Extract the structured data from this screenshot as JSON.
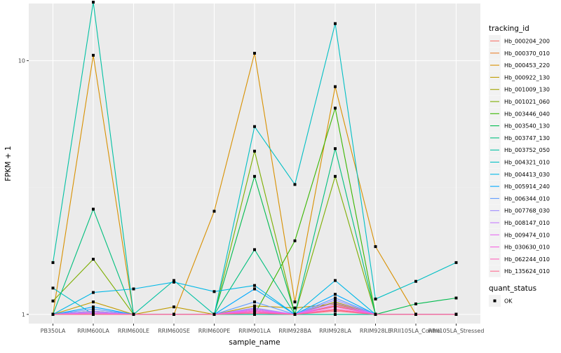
{
  "chart_data": {
    "type": "line",
    "xlabel": "sample_name",
    "ylabel": "FPKM + 1",
    "y_scale": "log10",
    "ylim": [
      0.92,
      16.8
    ],
    "grid": true,
    "legend_position": "right",
    "y_ticks": [
      {
        "value": 1,
        "label": "1"
      },
      {
        "value": 10,
        "label": "10"
      }
    ],
    "categories": [
      "PB350LA",
      "RRIM600LA",
      "RRIM600LE",
      "RRIM600SE",
      "RRIM600PE",
      "RRIM901LA",
      "RRIM928BA",
      "RRIM928LA",
      "RRIM928LE",
      "RRII105LA_Control",
      "RRII105LA_Stressed"
    ],
    "series": [
      {
        "name": "Hb_000204_200",
        "color": "#F8766D",
        "values": [
          1.0,
          1.01,
          1.0,
          1.0,
          1.0,
          1.02,
          1.0,
          1.04,
          1.0,
          1.0,
          1.0
        ]
      },
      {
        "name": "Hb_000370_010",
        "color": "#EA8331",
        "values": [
          1.0,
          1.02,
          1.0,
          1.0,
          1.0,
          1.03,
          1.0,
          1.08,
          1.0,
          1.0,
          1.0
        ]
      },
      {
        "name": "Hb_000453_220",
        "color": "#D89000",
        "values": [
          1.0,
          10.5,
          1.0,
          1.0,
          2.55,
          10.7,
          1.12,
          7.9,
          1.85,
          1.0,
          1.0
        ]
      },
      {
        "name": "Hb_000922_130",
        "color": "#C09B00",
        "values": [
          1.0,
          1.12,
          1.0,
          1.07,
          1.0,
          1.08,
          1.06,
          1.1,
          1.0,
          1.0,
          1.0
        ]
      },
      {
        "name": "Hb_001009_130",
        "color": "#A3A500",
        "values": [
          1.0,
          1.03,
          1.0,
          1.0,
          1.0,
          1.05,
          1.0,
          1.12,
          1.0,
          1.0,
          1.0
        ]
      },
      {
        "name": "Hb_001021_060",
        "color": "#7CAE00",
        "values": [
          1.13,
          1.65,
          1.0,
          1.0,
          1.0,
          4.4,
          1.0,
          3.5,
          1.0,
          1.0,
          1.0
        ]
      },
      {
        "name": "Hb_003446_040",
        "color": "#39B600",
        "values": [
          1.0,
          1.0,
          1.0,
          1.0,
          1.0,
          1.0,
          1.95,
          6.5,
          1.0,
          1.0,
          1.0
        ]
      },
      {
        "name": "Hb_003540_130",
        "color": "#00BB4E",
        "values": [
          1.0,
          1.0,
          1.0,
          1.0,
          1.0,
          3.5,
          1.0,
          1.0,
          1.0,
          1.1,
          1.16
        ]
      },
      {
        "name": "Hb_003747_130",
        "color": "#00BF7D",
        "values": [
          1.0,
          2.6,
          1.0,
          1.0,
          1.0,
          1.8,
          1.0,
          4.5,
          1.0,
          1.0,
          1.0
        ]
      },
      {
        "name": "Hb_003752_050",
        "color": "#00C1A3",
        "values": [
          1.6,
          17.0,
          1.0,
          1.36,
          1.0,
          1.0,
          1.0,
          1.0,
          1.0,
          1.0,
          1.0
        ]
      },
      {
        "name": "Hb_004321_010",
        "color": "#00BFC4",
        "values": [
          1.27,
          1.0,
          1.0,
          1.0,
          1.0,
          5.5,
          3.25,
          14.0,
          1.15,
          1.35,
          1.6
        ]
      },
      {
        "name": "Hb_004413_030",
        "color": "#00B8E7",
        "values": [
          1.0,
          1.22,
          1.26,
          1.34,
          1.23,
          1.3,
          1.0,
          1.36,
          1.0,
          1.0,
          1.0
        ]
      },
      {
        "name": "Hb_005914_240",
        "color": "#00A9FF",
        "values": [
          1.0,
          1.07,
          1.0,
          1.0,
          1.0,
          1.26,
          1.0,
          1.2,
          1.0,
          1.0,
          1.0
        ]
      },
      {
        "name": "Hb_006344_010",
        "color": "#619CFF",
        "values": [
          1.0,
          1.05,
          1.0,
          1.0,
          1.0,
          1.12,
          1.0,
          1.16,
          1.0,
          1.0,
          1.0
        ]
      },
      {
        "name": "Hb_007768_030",
        "color": "#9F8CFF",
        "values": [
          1.0,
          1.03,
          1.0,
          1.0,
          1.0,
          1.06,
          1.0,
          1.14,
          1.0,
          1.0,
          1.0
        ]
      },
      {
        "name": "Hb_008147_010",
        "color": "#C77CFF",
        "values": [
          1.0,
          1.02,
          1.0,
          1.0,
          1.0,
          1.05,
          1.0,
          1.11,
          1.0,
          1.0,
          1.0
        ]
      },
      {
        "name": "Hb_009474_010",
        "color": "#E76BF3",
        "values": [
          1.0,
          1.01,
          1.0,
          1.0,
          1.0,
          1.04,
          1.0,
          1.09,
          1.0,
          1.0,
          1.0
        ]
      },
      {
        "name": "Hb_030630_010",
        "color": "#F763E0",
        "values": [
          1.0,
          1.0,
          1.0,
          1.0,
          1.0,
          1.03,
          1.0,
          1.07,
          1.0,
          1.0,
          1.0
        ]
      },
      {
        "name": "Hb_062244_010",
        "color": "#FF62BC",
        "values": [
          1.0,
          1.0,
          1.0,
          1.0,
          1.0,
          1.02,
          1.0,
          1.05,
          1.0,
          1.0,
          1.0
        ]
      },
      {
        "name": "Hb_135624_010",
        "color": "#FF6C91",
        "values": [
          1.0,
          1.0,
          1.0,
          1.0,
          1.0,
          1.01,
          1.0,
          1.03,
          1.0,
          1.0,
          1.0
        ]
      }
    ],
    "legend": {
      "title": "tracking_id",
      "shape_title": "quant_status",
      "shape_label": "OK"
    },
    "colors": {
      "panel_background": "#EBEBEB",
      "grid_major": "#FFFFFF",
      "grid_minor": "#F2F2F2",
      "point": "#000000",
      "tick_text": "#4D4D4D"
    }
  }
}
